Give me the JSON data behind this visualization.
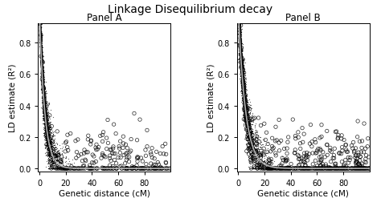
{
  "title": "Linkage Disequilibrium decay",
  "panel_a_title": "Panel A",
  "panel_b_title": "Panel B",
  "xlabel": "Genetic distance (cM)",
  "ylabel": "LD estimate (R²)",
  "xlim": [
    -1,
    100
  ],
  "ylim": [
    -0.02,
    0.92
  ],
  "xticks": [
    0,
    20,
    40,
    60,
    80
  ],
  "yticks": [
    0.0,
    0.2,
    0.4,
    0.6,
    0.8
  ],
  "scatter_color": "black",
  "curve_color": "#b0b0b0",
  "background_color": "white",
  "seed_dense_a": 1,
  "seed_dense_b": 2,
  "seed_open_a": 3,
  "seed_open_b": 4,
  "n_dense": 5000,
  "n_open_a": 300,
  "n_open_b": 500,
  "decay_rate_a": 0.25,
  "decay_rate_b": 0.18,
  "title_fontsize": 10,
  "panel_fontsize": 8.5,
  "axis_label_fontsize": 7.5,
  "tick_fontsize": 7
}
